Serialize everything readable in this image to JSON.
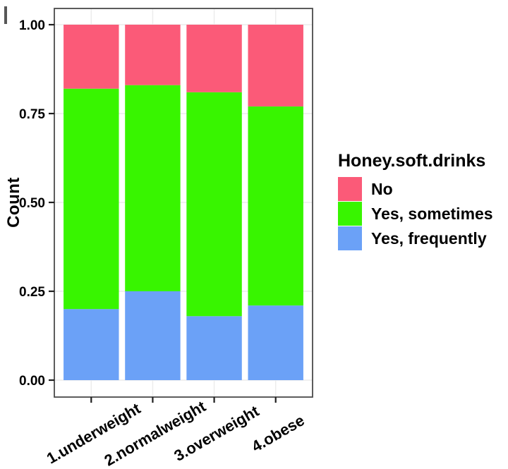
{
  "chart_data": {
    "type": "bar",
    "variant": "stacked-proportion",
    "title": "",
    "xlabel": "",
    "ylabel": "Count",
    "categories": [
      "1.underweight",
      "2.normalweight",
      "3.overweight",
      "4.obese"
    ],
    "series": [
      {
        "name": "No",
        "color": "#fb5a78",
        "values": [
          0.18,
          0.17,
          0.19,
          0.23
        ]
      },
      {
        "name": "Yes, sometimes",
        "color": "#38f500",
        "values": [
          0.62,
          0.58,
          0.63,
          0.56
        ]
      },
      {
        "name": "Yes, frequently",
        "color": "#6ba1f7",
        "values": [
          0.2,
          0.25,
          0.18,
          0.21
        ]
      }
    ],
    "stack_order": "top-to-bottom",
    "ylim": [
      0,
      1
    ],
    "y_ticks": [
      {
        "value": 0.0,
        "label": "0.00"
      },
      {
        "value": 0.25,
        "label": "0.25"
      },
      {
        "value": 0.5,
        "label": "0.50"
      },
      {
        "value": 0.75,
        "label": "0.75"
      },
      {
        "value": 1.0,
        "label": "1.00"
      }
    ],
    "grid": true,
    "legend": {
      "title": "Honey.soft.drinks",
      "position": "right"
    }
  },
  "colors": {
    "background": "#ffffff",
    "panel_border": "#4a4a4a",
    "grid": "#ececec",
    "tick": "#1f1f1f",
    "text": "#000000"
  }
}
